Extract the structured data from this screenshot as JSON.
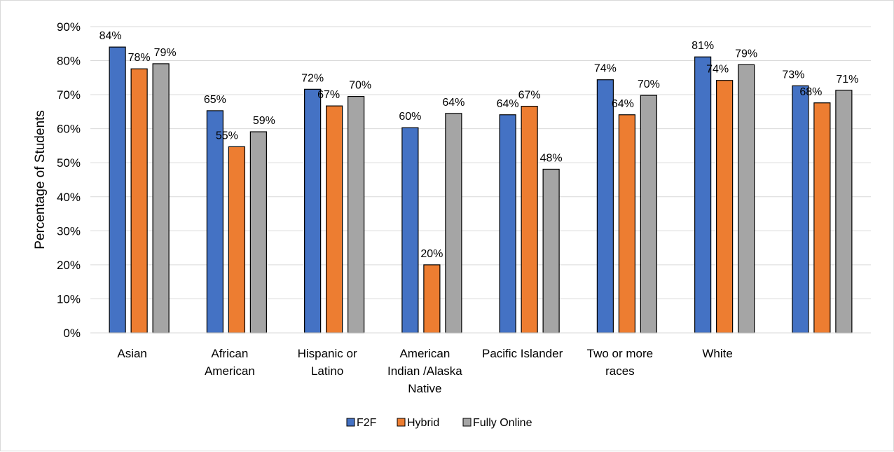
{
  "chart_data": {
    "type": "bar",
    "ylabel": "Percentage of Students",
    "ylim": [
      0,
      90
    ],
    "ytick_step": 10,
    "ytick_labels": [
      "0%",
      "10%",
      "20%",
      "30%",
      "40%",
      "50%",
      "60%",
      "70%",
      "80%",
      "90%"
    ],
    "grid": true,
    "legend_position": "bottom",
    "categories": [
      [
        "Asian"
      ],
      [
        "African",
        "American"
      ],
      [
        "Hispanic or",
        "Latino"
      ],
      [
        "American",
        "Indian /Alaska",
        "Native"
      ],
      [
        "Pacific Islander"
      ],
      [
        "Two or more",
        "races"
      ],
      [
        "White"
      ],
      []
    ],
    "series": [
      {
        "name": "F2F",
        "color": "#4472c4",
        "values": [
          84,
          65.3,
          71.6,
          60.3,
          64.1,
          74.4,
          81.1,
          72.6
        ],
        "labels": [
          "84%",
          "65%",
          "72%",
          "60%",
          "64%",
          "74%",
          "81%",
          "73%"
        ]
      },
      {
        "name": "Hybrid",
        "color": "#ed7d31",
        "values": [
          77.6,
          54.7,
          66.7,
          20,
          66.6,
          64.1,
          74.2,
          67.6
        ],
        "labels": [
          "78%",
          "55%",
          "67%",
          "20%",
          "67%",
          "64%",
          "74%",
          "68%"
        ]
      },
      {
        "name": "Fully Online",
        "color": "#a5a5a5",
        "values": [
          79.1,
          59.1,
          69.5,
          64.5,
          48.1,
          69.8,
          78.8,
          71.3
        ],
        "labels": [
          "79%",
          "59%",
          "70%",
          "64%",
          "48%",
          "70%",
          "79%",
          "71%"
        ]
      }
    ]
  }
}
